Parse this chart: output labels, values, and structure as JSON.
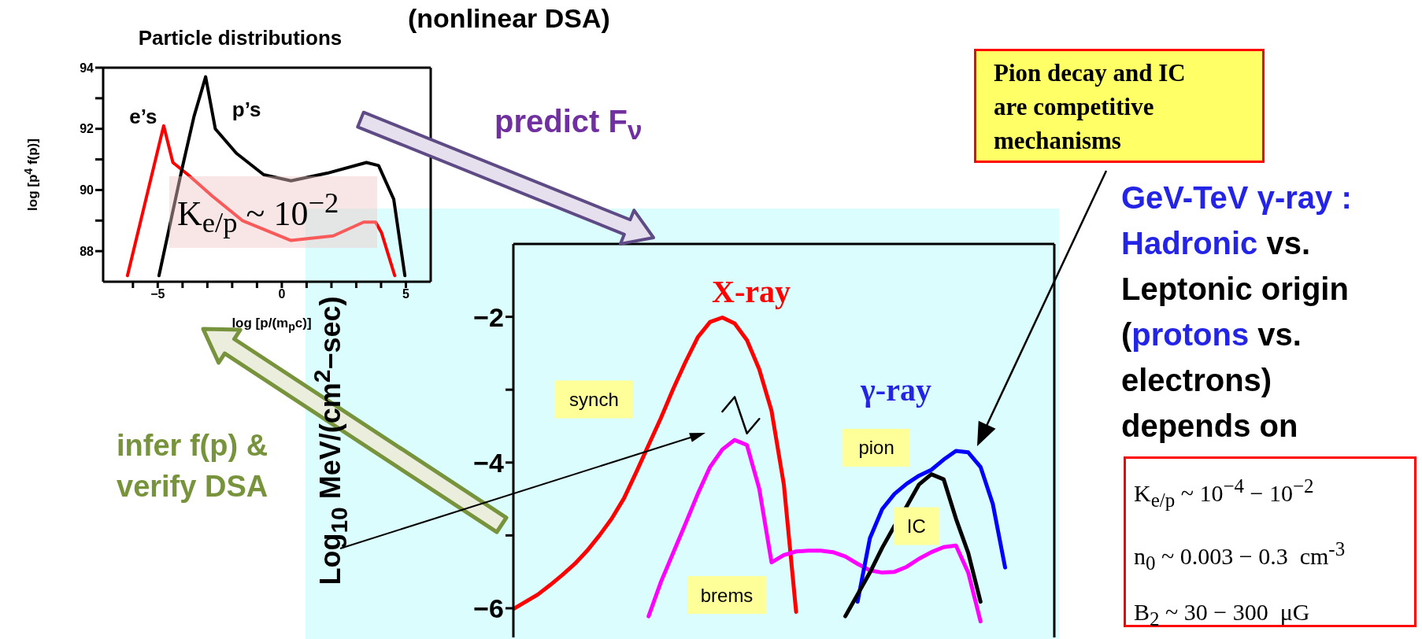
{
  "chart_data": [
    {
      "type": "line",
      "title": "Particle distributions",
      "subtitle": "(nonlinear DSA)",
      "xlabel": "log [p/(m$_{p}$c)]",
      "ylabel": "log [p$^{4}$ f(p)]",
      "xlim": [
        -7.2,
        6
      ],
      "xticks": [
        {
          "value": -6,
          "label": null
        },
        -5,
        {
          "value": -4,
          "label": null
        },
        {
          "value": -3,
          "label": null
        },
        {
          "value": -2,
          "label": null
        },
        {
          "value": -1,
          "label": null
        },
        0,
        {
          "value": 1,
          "label": null
        },
        {
          "value": 2,
          "label": null
        },
        {
          "value": 3,
          "label": null
        },
        {
          "value": 4,
          "label": null
        },
        5
      ],
      "ylim": [
        87,
        94
      ],
      "yticks": [
        88,
        {
          "value": 89,
          "label": null
        },
        90,
        {
          "value": 91,
          "label": null
        },
        92,
        {
          "value": 93,
          "label": null
        },
        94
      ],
      "series": [
        {
          "name": "e’s",
          "color": "#ff0000",
          "x": [
            -6.22,
            -4.76,
            -4.39,
            -3.78,
            -2.8,
            -1.59,
            0.37,
            2.07,
            3.3,
            3.78,
            4.02,
            4.55
          ],
          "values": [
            87.2,
            92.1,
            90.9,
            90.5,
            89.8,
            89.0,
            88.35,
            88.5,
            88.95,
            88.95,
            88.6,
            87.2
          ]
        },
        {
          "name": "p’s",
          "color": "#000000",
          "x": [
            -4.95,
            -4.02,
            -3.54,
            -3.07,
            -2.68,
            -1.83,
            -0.73,
            0.37,
            1.83,
            3.41,
            3.9,
            4.51,
            4.96
          ],
          "values": [
            87.2,
            90.7,
            92.4,
            93.7,
            92.0,
            91.2,
            90.5,
            90.3,
            90.55,
            90.9,
            90.8,
            89.7,
            87.2
          ]
        }
      ],
      "annotations": [
        "K$_{e/p}$  ~ 10$^{−2}$",
        "infer f(p) & verify DSA"
      ]
    },
    {
      "type": "line",
      "ylabel": "Log$_{10}$ MeV/(cm$^{2}$−sec)",
      "ylim": [
        -6.4,
        -1
      ],
      "yticks": [
        -6,
        {
          "value": -5,
          "label": null
        },
        -4,
        {
          "value": -3,
          "label": null
        },
        -2
      ],
      "tick_labels": "y",
      "categories": [
        null,
        null,
        null,
        null,
        null,
        null,
        null,
        null,
        null,
        null,
        null,
        null,
        null,
        null,
        null,
        null,
        null,
        null,
        null,
        null,
        null,
        null,
        null,
        null,
        null,
        null,
        null,
        null,
        null,
        null,
        null,
        null,
        null,
        null,
        null,
        null,
        null,
        null,
        null,
        null,
        null,
        null,
        null,
        null,
        null
      ],
      "series": [
        {
          "name": "synch",
          "color": "#ff0000",
          "values": [
            -6.01,
            -5.91,
            -5.81,
            -5.68,
            -5.54,
            -5.39,
            -5.21,
            -5.0,
            -4.77,
            -4.49,
            -4.13,
            -3.76,
            -3.39,
            -2.99,
            -2.62,
            -2.28,
            -2.07,
            -2.01,
            -2.09,
            -2.32,
            -2.72,
            -3.29,
            -4.3,
            -6.05,
            null,
            null,
            null,
            null,
            null,
            null,
            null,
            null,
            null,
            null,
            null,
            null,
            null,
            null,
            null,
            null,
            null,
            null,
            null,
            null,
            null
          ]
        },
        {
          "name": "brems",
          "color": "#ff00ff",
          "values": [
            null,
            null,
            null,
            null,
            null,
            null,
            null,
            null,
            null,
            null,
            null,
            -6.11,
            -5.64,
            -5.24,
            -4.84,
            -4.43,
            -4.06,
            -3.82,
            -3.69,
            -3.76,
            -4.36,
            -5.37,
            -5.27,
            -5.22,
            -5.21,
            -5.21,
            -5.23,
            -5.29,
            -5.39,
            -5.48,
            -5.51,
            -5.5,
            -5.43,
            -5.32,
            -5.23,
            -5.16,
            -5.14,
            -5.51,
            -6.18,
            null,
            null,
            null,
            null,
            null,
            null
          ]
        },
        {
          "name": "pion",
          "color": "#0000ff",
          "values": [
            null,
            null,
            null,
            null,
            null,
            null,
            null,
            null,
            null,
            null,
            null,
            null,
            null,
            null,
            null,
            null,
            null,
            null,
            null,
            null,
            null,
            null,
            null,
            null,
            null,
            null,
            null,
            null,
            -5.91,
            -5.04,
            -4.64,
            -4.43,
            -4.29,
            -4.18,
            -4.1,
            -3.96,
            -3.84,
            -3.86,
            -4.06,
            -4.57,
            -5.44,
            null,
            null,
            null,
            null
          ]
        },
        {
          "name": "IC",
          "color": "#000000",
          "values": [
            null,
            null,
            null,
            null,
            null,
            null,
            null,
            null,
            null,
            null,
            null,
            null,
            null,
            null,
            null,
            null,
            null,
            null,
            null,
            null,
            null,
            null,
            null,
            null,
            null,
            null,
            null,
            -6.11,
            -5.81,
            -5.51,
            -5.17,
            -4.87,
            -4.6,
            -4.3,
            -4.16,
            -4.23,
            -4.77,
            -5.24,
            -5.91,
            null,
            null,
            null,
            null,
            null,
            null
          ]
        },
        {
          "color": "#000000",
          "values": [
            null,
            null,
            null,
            null,
            null,
            null,
            null,
            null,
            null,
            null,
            null,
            null,
            null,
            null,
            null,
            null,
            null,
            -3.3,
            -3.1,
            -3.6,
            -3.4,
            null,
            null,
            null,
            null,
            null,
            null,
            null,
            null,
            null,
            null,
            null,
            null,
            null,
            null,
            null,
            null,
            null,
            null,
            null,
            null,
            null,
            null,
            null,
            null
          ]
        }
      ],
      "annotations": [
        "X-ray",
        "γ-ray",
        "Pion decay and IC are competitive mechanisms",
        "GeV-TeV γ-ray : ",
        "Hadronic",
        " vs. Leptonic origin (",
        "protons",
        " vs. electrons) depends on",
        "K$_{e/p}$ ~ 10$^{−4}$ − 10$^{−2}$",
        "n$_{0}$ ~ 0.003 − 0.3  cm$^{-3}$",
        "B$_{2}$ ~ 30 − 300  μG",
        "predict F$_{ν}$"
      ]
    }
  ]
}
